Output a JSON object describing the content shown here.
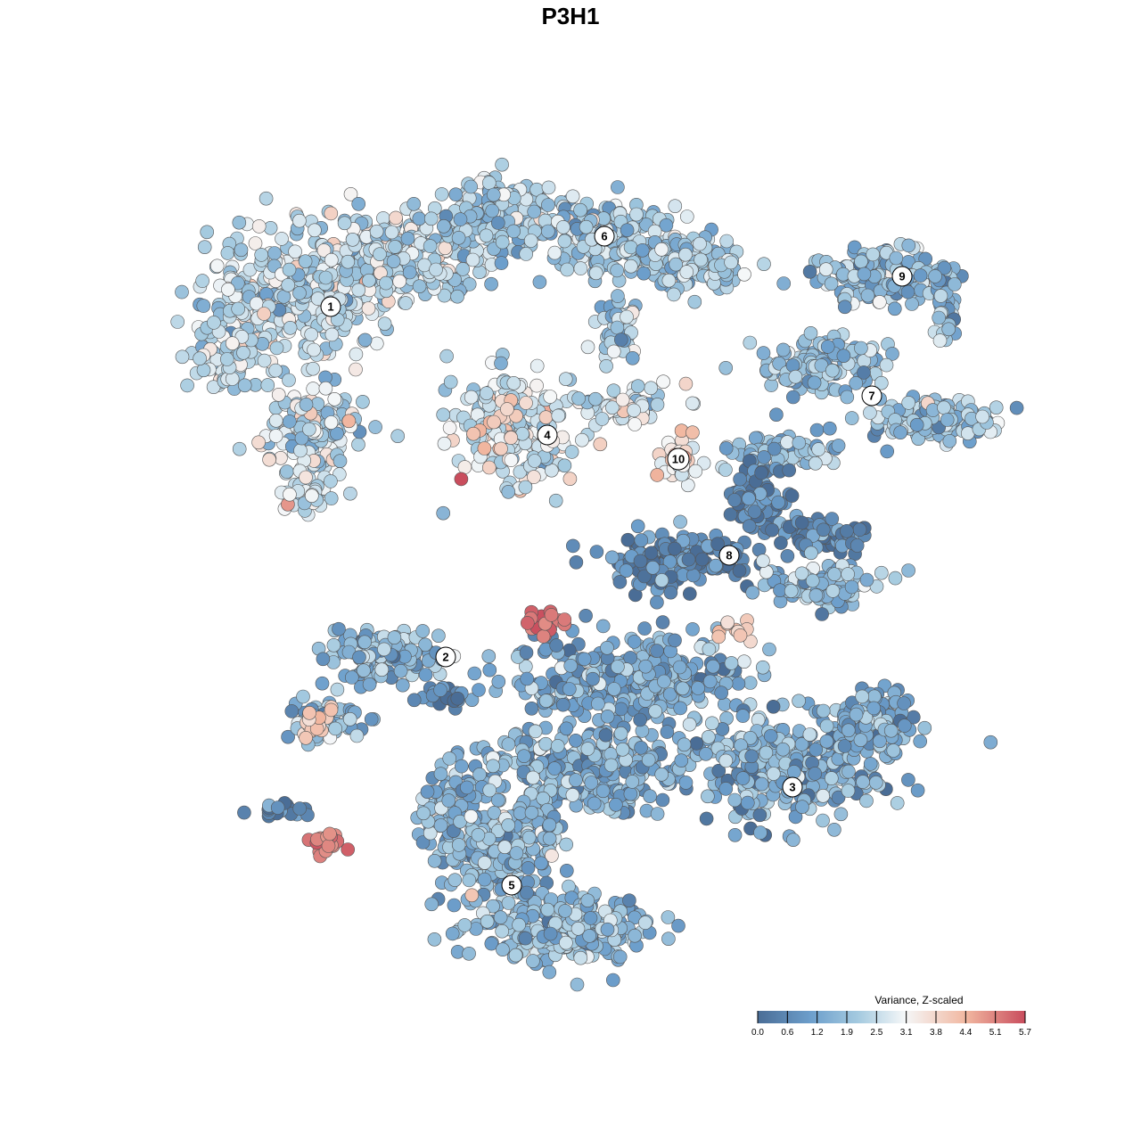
{
  "chart_data": {
    "type": "scatter",
    "title": "P3H1",
    "xlabel": "",
    "ylabel": "",
    "grid": false,
    "colorbar": {
      "title": "Variance, Z-scaled",
      "ticks": [
        "0.0",
        "0.6",
        "1.2",
        "1.9",
        "2.5",
        "3.1",
        "3.8",
        "4.4",
        "5.1",
        "5.7"
      ],
      "min": 0.0,
      "max": 5.7,
      "colors": [
        "#4a6d96",
        "#6d9fcc",
        "#a6cbe0",
        "#f5f7f8",
        "#f1b7a0",
        "#c94d5d"
      ],
      "placement": "bottom-right"
    },
    "clusters": [
      {
        "label": "1",
        "value": 2.6
      },
      {
        "label": "2",
        "value": 1.7
      },
      {
        "label": "3",
        "value": 1.5
      },
      {
        "label": "4",
        "value": 2.9
      },
      {
        "label": "5",
        "value": 1.8
      },
      {
        "label": "6",
        "value": 2.2
      },
      {
        "label": "7",
        "value": 2.0
      },
      {
        "label": "8",
        "value": 0.5
      },
      {
        "label": "9",
        "value": 1.8
      },
      {
        "label": "10",
        "value": 3.6
      }
    ]
  }
}
